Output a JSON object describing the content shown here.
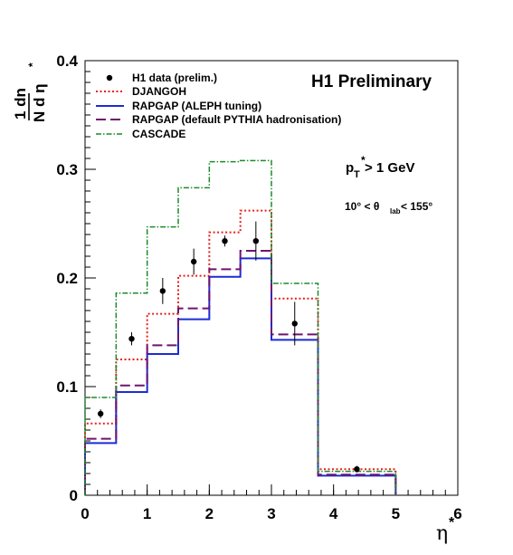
{
  "chart_data": {
    "type": "histogram",
    "title": "H1 Preliminary",
    "xlabel": "η",
    "xlabel_sup": "*",
    "ylabel": {
      "numerator": "1 dn",
      "denominator": "N d η",
      "denominator_sup": "*"
    },
    "xlim": [
      0,
      6
    ],
    "ylim": [
      0,
      0.4
    ],
    "x_ticks": [
      0,
      1,
      2,
      3,
      4,
      5,
      6
    ],
    "x_tick_labels": [
      "0",
      "1",
      "2",
      "3",
      "4",
      "5",
      "6"
    ],
    "y_ticks": [
      0,
      0.1,
      0.2,
      0.3,
      0.4
    ],
    "y_tick_labels": [
      "0",
      "0.1",
      "0.2",
      "0.3",
      "0.4"
    ],
    "grid": false,
    "legend_position": "top-left",
    "bin_edges": [
      0,
      0.5,
      1.0,
      1.5,
      2.0,
      2.5,
      3.0,
      3.75,
      5.0
    ],
    "series": [
      {
        "name": "DJANGOH",
        "kind": "step",
        "color": "#e8211a",
        "dash": "dotted",
        "values": [
          0.066,
          0.125,
          0.167,
          0.202,
          0.242,
          0.262,
          0.181,
          0.024
        ]
      },
      {
        "name": "RAPGAP (ALEPH tuning)",
        "kind": "step",
        "color": "#1c2bd6",
        "dash": "solid",
        "values": [
          0.048,
          0.095,
          0.13,
          0.162,
          0.201,
          0.218,
          0.143,
          0.018
        ]
      },
      {
        "name": "RAPGAP (default PYTHIA hadronisation)",
        "kind": "step",
        "color": "#6e1470",
        "dash": "longdash",
        "values": [
          0.052,
          0.101,
          0.138,
          0.172,
          0.208,
          0.225,
          0.148,
          0.019
        ]
      },
      {
        "name": "CASCADE",
        "kind": "step",
        "color": "#1e8a2c",
        "dash": "dashdot",
        "values": [
          0.09,
          0.186,
          0.247,
          0.283,
          0.307,
          0.308,
          0.195,
          0.022
        ]
      }
    ],
    "points": {
      "name": "H1 data (prelim.)",
      "x": [
        0.25,
        0.75,
        1.25,
        1.75,
        2.25,
        2.75,
        3.375,
        4.375
      ],
      "y": [
        0.075,
        0.144,
        0.188,
        0.215,
        0.234,
        0.234,
        0.158,
        0.024
      ],
      "err": [
        0.004,
        0.006,
        0.012,
        0.012,
        0.005,
        0.018,
        0.02,
        0.003
      ]
    },
    "annotations": {
      "pt_main": "p",
      "pt_sub": "T",
      "pt_sup": "*",
      "pt_rest": " > 1 GeV",
      "theta_pre": "10° < θ",
      "theta_sub": "lab",
      "theta_post": "< 155°"
    }
  }
}
